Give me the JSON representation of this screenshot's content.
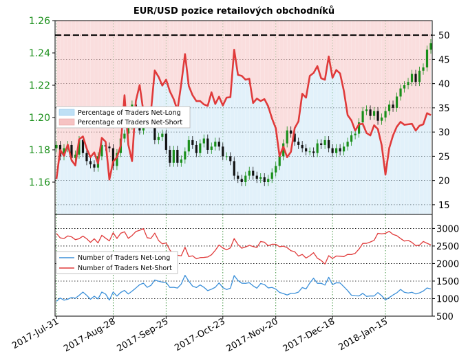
{
  "chart_data": [
    {
      "type": "line",
      "title": "EUR/USD pozice retailových obchodníků",
      "x_tick_labels": [
        "2017-Jul-31",
        "2017-Aug-28",
        "2017-Sep-25",
        "2017-Oct-23",
        "2017-Nov-20",
        "2017-Dec-18",
        "2018-Jan-15"
      ],
      "price_axis": {
        "label_side": "left",
        "ylim": [
          1.14,
          1.26
        ],
        "ticks": [
          "1.16",
          "1.18",
          "1.20",
          "1.22",
          "1.24",
          "1.26"
        ]
      },
      "percent_axis": {
        "label_side": "right",
        "ylim": [
          13,
          53
        ],
        "ticks": [
          "15",
          "20",
          "25",
          "30",
          "35",
          "40",
          "45",
          "50"
        ]
      },
      "legend": {
        "placement": "left",
        "entries": [
          "Percentage of Traders Net-Long",
          "Percentage of Traders Net-Short"
        ]
      },
      "grid": true,
      "reference_line": 50,
      "colors": {
        "price": "#1a8f1a",
        "net_short": "#e03a3a",
        "net_long_fill": "#bfe0f5",
        "net_short_fill": "#f6c3c3"
      },
      "series": [
        {
          "name": "EUR/USD",
          "kind": "ohlc-candles",
          "close": [
            1.183,
            1.176,
            1.181,
            1.183,
            1.175,
            1.177,
            1.186,
            1.178,
            1.173,
            1.171,
            1.169,
            1.176,
            1.183,
            1.182,
            1.181,
            1.17,
            1.178,
            1.187,
            1.19,
            1.195,
            1.208,
            1.196,
            1.192,
            1.202,
            1.197,
            1.196,
            1.186,
            1.188,
            1.19,
            1.18,
            1.172,
            1.18,
            1.172,
            1.174,
            1.179,
            1.186,
            1.183,
            1.178,
            1.184,
            1.187,
            1.18,
            1.182,
            1.185,
            1.182,
            1.176,
            1.176,
            1.173,
            1.164,
            1.162,
            1.16,
            1.164,
            1.167,
            1.164,
            1.162,
            1.163,
            1.16,
            1.162,
            1.166,
            1.17,
            1.176,
            1.184,
            1.192,
            1.19,
            1.185,
            1.183,
            1.181,
            1.179,
            1.179,
            1.178,
            1.184,
            1.183,
            1.186,
            1.181,
            1.178,
            1.181,
            1.179,
            1.182,
            1.185,
            1.189,
            1.19,
            1.197,
            1.204,
            1.205,
            1.201,
            1.204,
            1.198,
            1.2,
            1.204,
            1.208,
            1.206,
            1.213,
            1.218,
            1.22,
            1.222,
            1.227,
            1.222,
            1.229,
            1.231,
            1.242,
            1.246
          ]
        },
        {
          "name": "Percentage of Traders Net-Short",
          "values": [
            20.3,
            26.3,
            25.1,
            27.4,
            24.2,
            23.1,
            28.5,
            29.1,
            26.6,
            24.8,
            25.8,
            23.5,
            28.8,
            28.0,
            20.2,
            23.9,
            24.8,
            27.2,
            37.6,
            27.4,
            24.0,
            36.4,
            39.7,
            34.2,
            32.8,
            34.3,
            42.7,
            41.4,
            39.6,
            40.8,
            38.4,
            36.8,
            34.5,
            39.9,
            46.1,
            39.5,
            37.6,
            36.4,
            36.4,
            35.7,
            35.4,
            38.2,
            35.8,
            37.3,
            35.5,
            37.1,
            37.2,
            47.0,
            41.8,
            41.6,
            40.8,
            41.0,
            36.0,
            36.9,
            36.4,
            36.8,
            35.3,
            32.8,
            30.8,
            25.0,
            27.0,
            24.8,
            25.9,
            30.8,
            32.2,
            37.9,
            37.1,
            41.6,
            42.2,
            43.6,
            41.1,
            40.8,
            45.6,
            41.2,
            42.8,
            42.1,
            38.5,
            33.5,
            32.4,
            30.3,
            31.6,
            31.7,
            29.8,
            29.3,
            31.4,
            30.6,
            27.3,
            21.2,
            26.7,
            29.3,
            31.1,
            32.1,
            31.5,
            31.6,
            31.7,
            30.3,
            31.3,
            31.6,
            33.9,
            33.5
          ]
        },
        {
          "name": "Percentage of Traders Net-Long",
          "values": [
            79.7,
            73.7,
            74.9,
            72.6,
            75.8,
            76.9,
            71.5,
            70.9,
            73.4,
            75.2,
            74.2,
            76.5,
            71.2,
            72.0,
            79.8,
            76.1,
            75.2,
            72.8,
            62.4,
            72.6,
            76.0,
            63.6,
            60.3,
            65.8,
            67.2,
            65.7,
            57.3,
            58.6,
            60.4,
            59.2,
            61.6,
            63.2,
            65.5,
            60.1,
            53.9,
            60.5,
            62.4,
            63.6,
            63.6,
            64.3,
            64.6,
            61.8,
            64.2,
            62.7,
            64.5,
            62.9,
            62.8,
            53.0,
            58.2,
            58.4,
            59.2,
            59.0,
            64.0,
            63.1,
            63.6,
            63.2,
            64.7,
            67.2,
            69.2,
            75.0,
            73.0,
            75.2,
            74.1,
            69.2,
            67.8,
            62.1,
            62.9,
            58.4,
            57.8,
            56.4,
            58.9,
            59.2,
            54.4,
            58.8,
            57.2,
            57.9,
            61.5,
            66.5,
            67.6,
            69.7,
            68.4,
            68.3,
            70.2,
            70.7,
            68.6,
            69.4,
            72.7,
            78.8,
            73.3,
            70.7,
            68.9,
            67.9,
            68.5,
            68.4,
            68.3,
            69.7,
            68.7,
            68.4,
            66.1,
            66.5
          ]
        }
      ]
    },
    {
      "type": "line",
      "x_tick_labels": [
        "2017-Jul-31",
        "2017-Aug-28",
        "2017-Sep-25",
        "2017-Oct-23",
        "2017-Nov-20",
        "2017-Dec-18",
        "2018-Jan-15"
      ],
      "count_axis": {
        "label_side": "right",
        "ylim": [
          500,
          3400
        ],
        "ticks": [
          "500",
          "1000",
          "1500",
          "2000",
          "2500",
          "3000"
        ]
      },
      "legend": {
        "placement": "left",
        "entries": [
          "Number of Traders Net-Long",
          "Number of Traders Net-Short"
        ]
      },
      "grid": true,
      "colors": {
        "net_long": "#3a8fd9",
        "net_short": "#e03a3a"
      },
      "series": [
        {
          "name": "Number of Traders Net-Long",
          "values": [
            920,
            1016,
            956,
            983,
            1033,
            1010,
            1093,
            1186,
            1094,
            982,
            1068,
            990,
            1188,
            1129,
            958,
            1187,
            1071,
            1176,
            1233,
            1132,
            1212,
            1302,
            1397,
            1440,
            1321,
            1378,
            1531,
            1498,
            1469,
            1463,
            1319,
            1322,
            1300,
            1415,
            1663,
            1496,
            1356,
            1315,
            1391,
            1322,
            1227,
            1268,
            1323,
            1447,
            1315,
            1259,
            1296,
            1657,
            1516,
            1439,
            1435,
            1453,
            1364,
            1298,
            1430,
            1402,
            1305,
            1318,
            1273,
            1176,
            1144,
            1102,
            1149,
            1149,
            1186,
            1316,
            1276,
            1447,
            1581,
            1436,
            1438,
            1386,
            1608,
            1397,
            1452,
            1447,
            1339,
            1229,
            1097,
            1081,
            1075,
            1150,
            1063,
            1076,
            1074,
            1172,
            1082,
            961,
            1030,
            1103,
            1165,
            1262,
            1180,
            1159,
            1181,
            1133,
            1163,
            1215,
            1304,
            1273
          ]
        },
        {
          "name": "Number of Traders Net-Short",
          "values": [
            2859,
            2731,
            2714,
            2787,
            2761,
            2681,
            2708,
            2781,
            2707,
            2604,
            2705,
            2588,
            2804,
            2723,
            2645,
            2878,
            2714,
            2864,
            2906,
            2718,
            2798,
            2912,
            2947,
            2996,
            2735,
            2718,
            2867,
            2658,
            2561,
            2586,
            2385,
            2256,
            2235,
            2220,
            2465,
            2197,
            2220,
            2137,
            2169,
            2174,
            2187,
            2250,
            2376,
            2528,
            2445,
            2390,
            2448,
            2712,
            2541,
            2437,
            2472,
            2520,
            2483,
            2457,
            2627,
            2608,
            2506,
            2549,
            2547,
            2480,
            2496,
            2453,
            2366,
            2337,
            2212,
            2260,
            2156,
            2222,
            2309,
            2151,
            2089,
            1985,
            2224,
            2145,
            2214,
            2208,
            2198,
            2260,
            2256,
            2291,
            2411,
            2573,
            2576,
            2614,
            2661,
            2862,
            2846,
            2861,
            2918,
            2829,
            2795,
            2713,
            2640,
            2661,
            2602,
            2510,
            2524,
            2628,
            2577,
            2531
          ]
        }
      ]
    }
  ]
}
